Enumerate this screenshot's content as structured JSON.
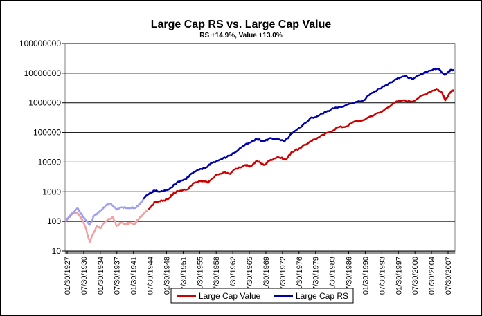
{
  "chart_data": {
    "type": "line",
    "title": "Large Cap RS vs. Large Cap Value",
    "subtitle": "RS +14.9%, Value +13.0%",
    "yscale": "log",
    "ylim": [
      10,
      100000000
    ],
    "y_ticks": [
      "10",
      "100",
      "1000",
      "10000",
      "100000",
      "1000000",
      "10000000",
      "100000000"
    ],
    "x_ticks": [
      "01/30/1927",
      "07/30/1930",
      "01/30/1934",
      "07/30/1937",
      "01/30/1941",
      "07/30/1944",
      "01/30/1948",
      "07/30/1951",
      "01/30/1955",
      "07/30/1958",
      "01/30/1962",
      "07/30/1965",
      "01/30/1969",
      "07/30/1972",
      "01/30/1976",
      "07/30/1979",
      "01/30/1983",
      "07/30/1986",
      "01/30/1990",
      "07/30/1993",
      "01/30/1997",
      "07/30/2000",
      "01/30/2004",
      "07/30/2007"
    ],
    "grid": true,
    "legend_position": "bottom-center",
    "series": [
      {
        "name": "Large Cap Value",
        "color": "#cc0000",
        "faded_color": "#f0a0a0",
        "faded_until_year": 1945,
        "points": [
          [
            1927.1,
            100
          ],
          [
            1928.0,
            140
          ],
          [
            1928.8,
            190
          ],
          [
            1929.7,
            200
          ],
          [
            1930.3,
            150
          ],
          [
            1931.0,
            100
          ],
          [
            1931.7,
            50
          ],
          [
            1932.4,
            20
          ],
          [
            1933.2,
            40
          ],
          [
            1934.0,
            70
          ],
          [
            1934.8,
            60
          ],
          [
            1935.6,
            90
          ],
          [
            1936.6,
            120
          ],
          [
            1937.4,
            140
          ],
          [
            1938.2,
            70
          ],
          [
            1939.2,
            90
          ],
          [
            1940.2,
            80
          ],
          [
            1941.0,
            90
          ],
          [
            1942.0,
            80
          ],
          [
            1943.0,
            120
          ],
          [
            1944.2,
            200
          ],
          [
            1945.5,
            300
          ],
          [
            1946.5,
            450
          ],
          [
            1947.5,
            480
          ],
          [
            1948.5,
            500
          ],
          [
            1949.5,
            600
          ],
          [
            1950.5,
            900
          ],
          [
            1952.0,
            1100
          ],
          [
            1953.5,
            1200
          ],
          [
            1955.0,
            2000
          ],
          [
            1957.0,
            2300
          ],
          [
            1958.0,
            2000
          ],
          [
            1959.5,
            3500
          ],
          [
            1961.5,
            4500
          ],
          [
            1962.5,
            4000
          ],
          [
            1964.0,
            6000
          ],
          [
            1966.0,
            8000
          ],
          [
            1967.0,
            7000
          ],
          [
            1968.5,
            11000
          ],
          [
            1970.0,
            8000
          ],
          [
            1971.5,
            12000
          ],
          [
            1973.0,
            15000
          ],
          [
            1974.8,
            12000
          ],
          [
            1976.0,
            22000
          ],
          [
            1978.0,
            30000
          ],
          [
            1980.0,
            50000
          ],
          [
            1982.0,
            70000
          ],
          [
            1984.0,
            100000
          ],
          [
            1986.0,
            150000
          ],
          [
            1987.8,
            160000
          ],
          [
            1990.0,
            250000
          ],
          [
            1991.0,
            240000
          ],
          [
            1993.0,
            350000
          ],
          [
            1995.5,
            500000
          ],
          [
            1998.0,
            1000000
          ],
          [
            2000.0,
            1200000
          ],
          [
            2002.0,
            1100000
          ],
          [
            2003.5,
            1500000
          ],
          [
            2005.5,
            2200000
          ],
          [
            2007.3,
            3000000
          ],
          [
            2008.5,
            2200000
          ],
          [
            2009.2,
            1200000
          ],
          [
            2010.0,
            2000000
          ],
          [
            2011.0,
            2800000
          ]
        ]
      },
      {
        "name": "Large Cap RS",
        "color": "#0000aa",
        "faded_color": "#a0a0ee",
        "faded_until_year": 1944,
        "points": [
          [
            1927.1,
            100
          ],
          [
            1928.0,
            150
          ],
          [
            1928.8,
            200
          ],
          [
            1929.7,
            280
          ],
          [
            1930.4,
            200
          ],
          [
            1931.2,
            130
          ],
          [
            1932.0,
            90
          ],
          [
            1932.5,
            80
          ],
          [
            1933.3,
            150
          ],
          [
            1934.2,
            200
          ],
          [
            1935.0,
            250
          ],
          [
            1936.2,
            380
          ],
          [
            1937.0,
            400
          ],
          [
            1938.2,
            250
          ],
          [
            1939.5,
            300
          ],
          [
            1940.5,
            280
          ],
          [
            1941.5,
            280
          ],
          [
            1942.5,
            300
          ],
          [
            1943.5,
            450
          ],
          [
            1944.5,
            700
          ],
          [
            1945.5,
            900
          ],
          [
            1946.5,
            1100
          ],
          [
            1947.5,
            1000
          ],
          [
            1948.8,
            1100
          ],
          [
            1950.0,
            1400
          ],
          [
            1951.5,
            2200
          ],
          [
            1953.0,
            2600
          ],
          [
            1954.5,
            4200
          ],
          [
            1956.0,
            5500
          ],
          [
            1957.5,
            6500
          ],
          [
            1958.5,
            9000
          ],
          [
            1960.5,
            12000
          ],
          [
            1962.0,
            15000
          ],
          [
            1963.5,
            20000
          ],
          [
            1965.5,
            35000
          ],
          [
            1967.0,
            45000
          ],
          [
            1968.5,
            60000
          ],
          [
            1970.0,
            50000
          ],
          [
            1971.5,
            65000
          ],
          [
            1972.8,
            60000
          ],
          [
            1974.5,
            50000
          ],
          [
            1976.0,
            90000
          ],
          [
            1978.0,
            150000
          ],
          [
            1980.0,
            300000
          ],
          [
            1981.5,
            350000
          ],
          [
            1983.5,
            500000
          ],
          [
            1985.5,
            700000
          ],
          [
            1987.5,
            800000
          ],
          [
            1989.5,
            1000000
          ],
          [
            1991.5,
            1200000
          ],
          [
            1993.0,
            2000000
          ],
          [
            1995.0,
            3000000
          ],
          [
            1997.0,
            4500000
          ],
          [
            1999.0,
            7000000
          ],
          [
            2000.5,
            8000000
          ],
          [
            2002.0,
            6500000
          ],
          [
            2003.5,
            8500000
          ],
          [
            2005.0,
            11000000
          ],
          [
            2007.0,
            14000000
          ],
          [
            2008.0,
            13000000
          ],
          [
            2009.0,
            9000000
          ],
          [
            2009.5,
            10000000
          ],
          [
            2010.5,
            13000000
          ],
          [
            2011.0,
            12000000
          ]
        ]
      }
    ]
  }
}
